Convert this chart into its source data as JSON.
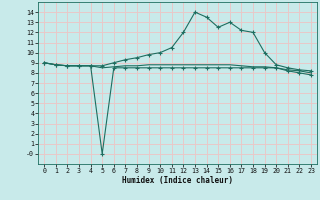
{
  "xlabel": "Humidex (Indice chaleur)",
  "x_ticks": [
    0,
    1,
    2,
    3,
    4,
    5,
    6,
    7,
    8,
    9,
    10,
    11,
    12,
    13,
    14,
    15,
    16,
    17,
    18,
    19,
    20,
    21,
    22,
    23
  ],
  "y_ticks": [
    0,
    1,
    2,
    3,
    4,
    5,
    6,
    7,
    8,
    9,
    10,
    11,
    12,
    13,
    14
  ],
  "y_ticklabels": [
    "-0",
    "1",
    "2",
    "3",
    "4",
    "5",
    "6",
    "7",
    "8",
    "9",
    "10",
    "11",
    "12",
    "13",
    "14"
  ],
  "xlim": [
    -0.5,
    23.5
  ],
  "ylim": [
    -1.0,
    15.0
  ],
  "bg_color": "#c8eaea",
  "grid_color": "#e8c8c8",
  "line_color": "#1e6e60",
  "line1_x": [
    0,
    1,
    2,
    3,
    4,
    5,
    6,
    7,
    8,
    9,
    10,
    11,
    12,
    13,
    14,
    15,
    16,
    17,
    18,
    19,
    20,
    21,
    22,
    23
  ],
  "line1_y": [
    9.0,
    8.8,
    8.7,
    8.7,
    8.7,
    8.7,
    9.0,
    9.3,
    9.5,
    9.8,
    10.0,
    10.5,
    12.0,
    14.0,
    13.5,
    12.5,
    13.0,
    12.2,
    12.0,
    10.0,
    8.8,
    8.5,
    8.3,
    8.2
  ],
  "line2_x": [
    0,
    1,
    2,
    3,
    4,
    5,
    6,
    7,
    8,
    9,
    10,
    11,
    12,
    13,
    14,
    15,
    16,
    17,
    18,
    19,
    20,
    21,
    22,
    23
  ],
  "line2_y": [
    9.0,
    8.8,
    8.7,
    8.7,
    8.7,
    8.5,
    8.6,
    8.7,
    8.7,
    8.8,
    8.8,
    8.8,
    8.8,
    8.8,
    8.8,
    8.8,
    8.8,
    8.7,
    8.6,
    8.6,
    8.5,
    8.3,
    8.2,
    8.0
  ],
  "line3_x": [
    0,
    1,
    2,
    3,
    4,
    5,
    6,
    7,
    8,
    9,
    10,
    11,
    12,
    13,
    14,
    15,
    16,
    17,
    18,
    19,
    20,
    21,
    22,
    23
  ],
  "line3_y": [
    9.0,
    8.8,
    8.7,
    8.7,
    8.7,
    0.0,
    8.5,
    8.5,
    8.5,
    8.5,
    8.5,
    8.5,
    8.5,
    8.5,
    8.5,
    8.5,
    8.5,
    8.5,
    8.5,
    8.5,
    8.5,
    8.2,
    8.0,
    7.8
  ],
  "xlabel_fontsize": 5.5,
  "tick_fontsize": 4.8
}
